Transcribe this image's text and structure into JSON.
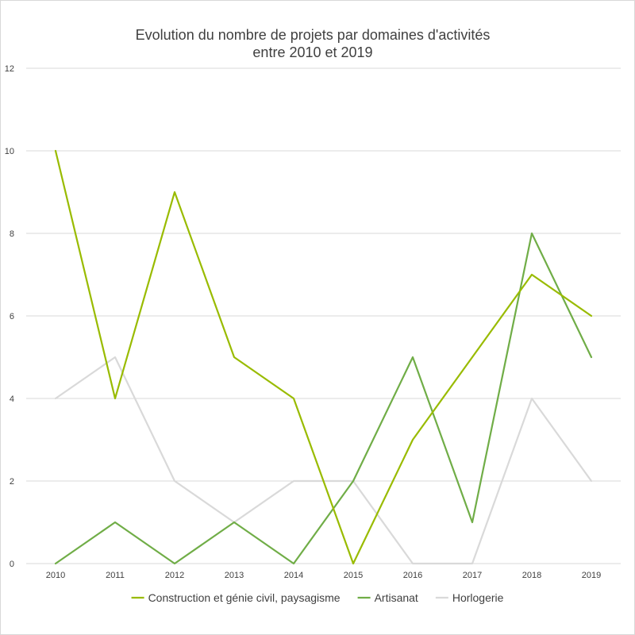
{
  "chart_data": {
    "type": "line",
    "title": [
      "Evolution du nombre de projets par domaines d'activités",
      "entre 2010 et 2019"
    ],
    "categories": [
      "2010",
      "2011",
      "2012",
      "2013",
      "2014",
      "2015",
      "2016",
      "2017",
      "2018",
      "2019"
    ],
    "ylim": [
      0,
      12
    ],
    "yticks": [
      "0",
      "2",
      "4",
      "6",
      "8",
      "10",
      "12"
    ],
    "grid": true,
    "legend_position": "bottom",
    "xlabel": "",
    "ylabel": "",
    "series": [
      {
        "name": "Construction et génie civil, paysagisme",
        "color": "#99bb00",
        "values": [
          10,
          4,
          9,
          5,
          4,
          0,
          3,
          5,
          7,
          6
        ]
      },
      {
        "name": "Artisanat",
        "color": "#70ad47",
        "values": [
          0,
          1,
          0,
          1,
          0,
          2,
          5,
          1,
          8,
          5
        ]
      },
      {
        "name": "Horlogerie",
        "color": "#d9d9d9",
        "values": [
          4,
          5,
          2,
          1,
          2,
          2,
          0,
          0,
          4,
          2
        ]
      }
    ]
  }
}
